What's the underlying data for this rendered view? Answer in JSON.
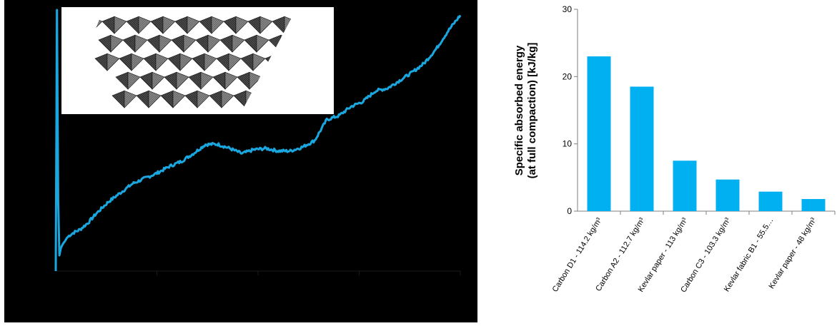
{
  "chart_data": [
    {
      "type": "line",
      "background": "#000000",
      "line_color": "#1aa7e0",
      "x": [
        0,
        0.3,
        0.6,
        0.9,
        1.3,
        1.8,
        2.3,
        2.8,
        3.5,
        4.5,
        6,
        8,
        10,
        13,
        16,
        19,
        22,
        25,
        28,
        31,
        34,
        37,
        40,
        43,
        46,
        49,
        52,
        55,
        58,
        61,
        64,
        67,
        70,
        73,
        76,
        79,
        82,
        85,
        88,
        91,
        94,
        97,
        100
      ],
      "y": [
        0,
        100,
        27,
        6,
        9,
        10.5,
        11.5,
        12.8,
        13.8,
        14.8,
        15.9,
        18.5,
        22,
        26.5,
        30,
        33.5,
        35.5,
        37.5,
        40,
        42,
        45,
        48.5,
        48.6,
        47,
        45,
        46.5,
        47,
        46,
        46,
        47.5,
        50,
        58,
        59.5,
        63,
        65,
        69,
        70,
        73,
        76,
        79.5,
        85,
        92,
        98
      ],
      "photo_inset": "carbon-fiber-origami-core"
    },
    {
      "type": "bar",
      "bar_color": "#00b0f0",
      "categories": [
        "Carbon D1 - 114.2 kg/m³",
        "Carbon A2 - 112.7 kg/m³",
        "Kevlar paper - 113 kg/m³",
        "Carbon C3 - 103.3 kg/m³",
        "Kevlar fabric B1 - 55.5…",
        "Kevlar paper - 48 kg/m³"
      ],
      "values": [
        23,
        18.5,
        7.5,
        4.7,
        2.9,
        1.8
      ],
      "ylabel_line1": "Specific absorbed energy",
      "ylabel_line2": "(at full compaction) [kJ/kg]",
      "ylim": [
        0,
        30
      ],
      "yticks": [
        0,
        10,
        20,
        30
      ],
      "grid": false,
      "legend": "none"
    }
  ]
}
